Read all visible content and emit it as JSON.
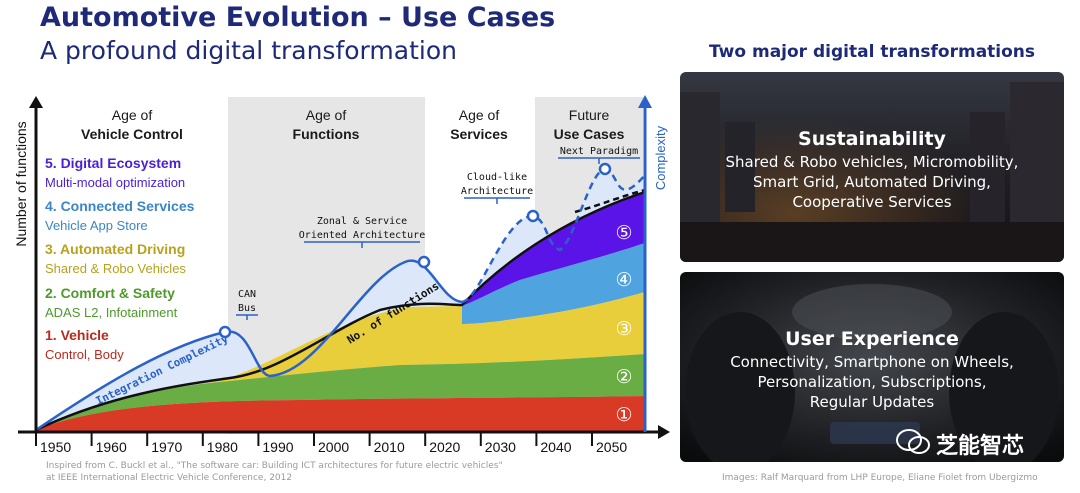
{
  "header": {
    "title": "Automotive Evolution – Use Cases",
    "subtitle": "A profound digital transformation"
  },
  "diagram": {
    "y_axis_label": "Number of functions",
    "complexity_label": "Complexity",
    "eras": [
      {
        "line1": "Age of",
        "line2": "Vehicle Control"
      },
      {
        "line1": "Age of",
        "line2": "Functions"
      },
      {
        "line1": "Age of",
        "line2": "Services"
      },
      {
        "line1": "Future",
        "line2": "Use Cases"
      }
    ],
    "categories": [
      {
        "title": "5. Digital Ecosystem",
        "desc": "Multi-modal optimization",
        "color": "#4a1ed6"
      },
      {
        "title": "4. Connected Services",
        "desc": "Vehicle App Store",
        "color": "#3a86c8"
      },
      {
        "title": "3. Automated Driving",
        "desc": "Shared & Robo Vehicles",
        "color": "#b8a21a"
      },
      {
        "title": "2. Comfort & Safety",
        "desc": "ADAS L2, Infotainment",
        "color": "#4e9a2a"
      },
      {
        "title": "1. Vehicle",
        "desc": "Control, Body",
        "color": "#b82a1e"
      }
    ],
    "layer_numbers": [
      "①",
      "②",
      "③",
      "④",
      "⑤"
    ],
    "annotations": {
      "can": {
        "line1": "CAN",
        "line2": "Bus"
      },
      "zonal": {
        "line1": "Zonal & Service",
        "line2": "Oriented Architecture"
      },
      "cloud": {
        "line1": "Cloud-like",
        "line2": "Architecture"
      },
      "next": "Next Paradigm",
      "integration": "Integration Complexity",
      "functions": "No. of functions"
    },
    "x_ticks": [
      "1950",
      "1960",
      "1970",
      "1980",
      "1990",
      "2000",
      "2010",
      "2020",
      "2030",
      "2040",
      "2050"
    ],
    "colors": {
      "layer1": "#d93a26",
      "layer2": "#6aad45",
      "layer3": "#e8ce3a",
      "layer4": "#4fa3de",
      "layer5": "#5a14e8",
      "complexity": "#2a62c9",
      "complexity_fill": "#dce8fa",
      "era_shade": "#e6e6e6"
    }
  },
  "right": {
    "title": "Two major digital transformations",
    "panels": [
      {
        "heading": "Sustainability",
        "lines": [
          "Shared & Robo vehicles, Micromobility,",
          "Smart Grid, Automated Driving,",
          "Cooperative Services"
        ]
      },
      {
        "heading": "User Experience",
        "lines": [
          "Connectivity, Smartphone on Wheels,",
          "Personalization, Subscriptions,",
          "Regular Updates"
        ]
      }
    ],
    "watermark": "芝能智芯"
  },
  "credits": {
    "left_line1": "Inspired from C. Buckl et al., \"The software car: Building ICT architectures for future electric vehicles\"",
    "left_line2": "at IEEE International Electric Vehicle Conference, 2012",
    "right": "Images: Ralf Marquard from LHP Europe, Eliane Fiolet from Ubergizmo"
  }
}
